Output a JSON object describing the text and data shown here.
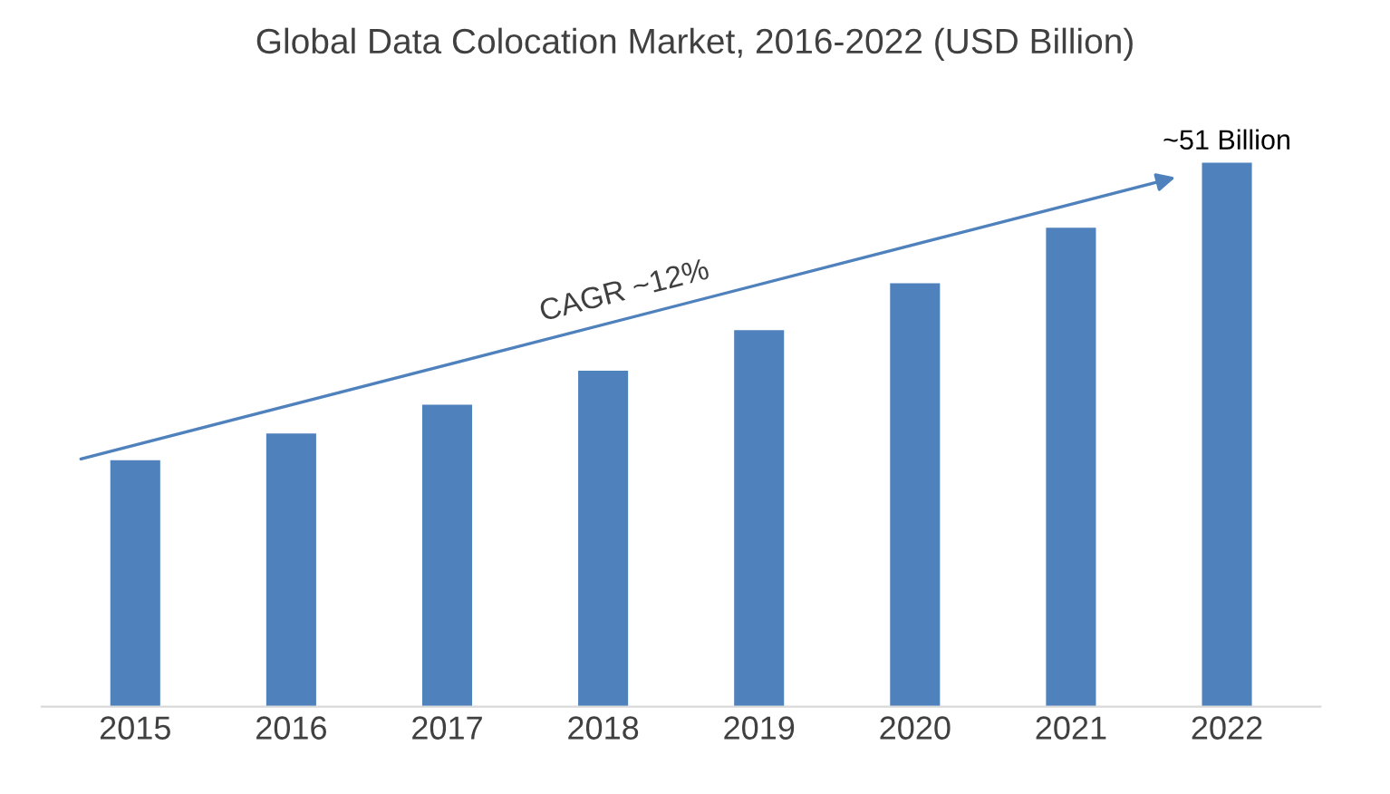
{
  "chart_data": {
    "type": "bar",
    "title": "Global Data Colocation Market, 2016-2022 (USD Billion)",
    "categories": [
      "2015",
      "2016",
      "2017",
      "2018",
      "2019",
      "2020",
      "2021",
      "2022"
    ],
    "values": [
      23.1,
      25.6,
      28.3,
      31.5,
      35.3,
      39.7,
      44.9,
      51
    ],
    "value_labels": [
      null,
      null,
      null,
      null,
      null,
      null,
      null,
      "~51 Billion"
    ],
    "color": "#4f81bd",
    "grid": false,
    "legend": false,
    "annotations": [
      "CAGR ~12%"
    ]
  }
}
